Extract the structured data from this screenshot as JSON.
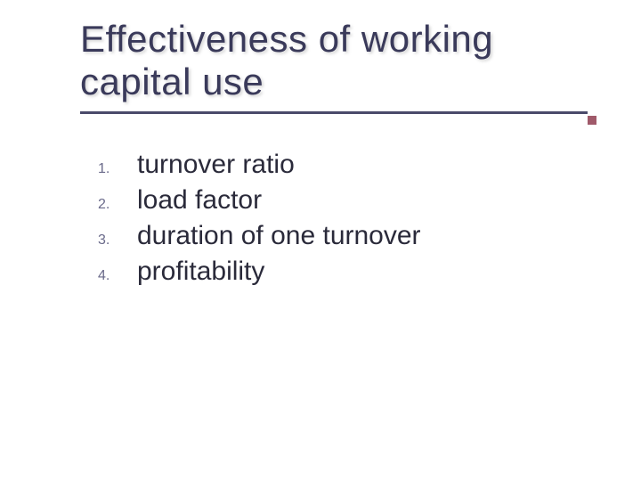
{
  "slide": {
    "title": "Effectiveness of working capital use",
    "title_color": "#3a3a5a",
    "underline_color": "#4a4a6a",
    "accent_square_color": "#a05a6a",
    "background_color": "#ffffff",
    "title_fontsize": 42,
    "list_fontsize": 30,
    "number_fontsize": 16,
    "number_color": "#6a6a8a",
    "text_color": "#2a2a3a",
    "items": [
      {
        "number": "1.",
        "text": "turnover ratio"
      },
      {
        "number": "2.",
        "text": "load factor"
      },
      {
        "number": "3.",
        "text": "duration of one turnover"
      },
      {
        "number": "4.",
        "text": "profitability"
      }
    ]
  }
}
